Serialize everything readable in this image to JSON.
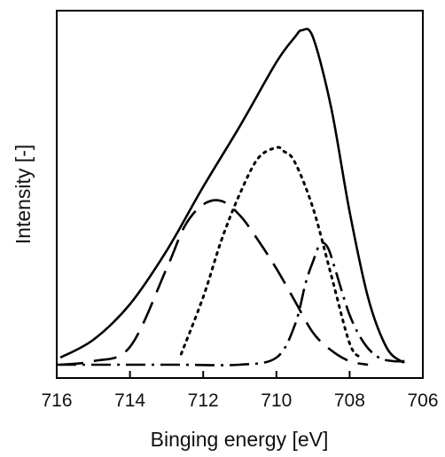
{
  "chart_data": {
    "type": "line",
    "title": "",
    "xlabel": "Binging energy [eV]",
    "ylabel": "Intensity [-]",
    "xlim": [
      716,
      706
    ],
    "x_reversed": true,
    "ylim": [
      0,
      1.0
    ],
    "y_tick_labels": false,
    "x_ticks": [
      "716",
      "714",
      "712",
      "710",
      "708",
      "706"
    ],
    "grid": false,
    "legend": "none",
    "series": [
      {
        "style": "solid",
        "x": [
          715.9,
          715.0,
          714.0,
          713.0,
          712.0,
          711.0,
          710.0,
          709.5,
          709.3,
          709.0,
          708.5,
          708.0,
          707.5,
          707.0,
          706.6,
          706.5
        ],
        "y": [
          0.03,
          0.08,
          0.18,
          0.33,
          0.51,
          0.68,
          0.86,
          0.93,
          0.95,
          0.93,
          0.73,
          0.44,
          0.2,
          0.06,
          0.02,
          0.02
        ]
      },
      {
        "style": "long-dash",
        "x": [
          715.9,
          715.0,
          714.0,
          713.0,
          712.5,
          712.0,
          711.5,
          711.0,
          710.5,
          710.0,
          709.5,
          709.0,
          708.5,
          708.0,
          707.5
        ],
        "y": [
          0.01,
          0.02,
          0.06,
          0.28,
          0.4,
          0.46,
          0.47,
          0.43,
          0.36,
          0.28,
          0.19,
          0.1,
          0.05,
          0.02,
          0.01
        ]
      },
      {
        "style": "dotted",
        "x": [
          712.6,
          712.0,
          711.5,
          711.0,
          710.5,
          710.0,
          709.8,
          709.5,
          709.0,
          708.5,
          708.0,
          707.7
        ],
        "y": [
          0.04,
          0.2,
          0.36,
          0.49,
          0.59,
          0.62,
          0.61,
          0.58,
          0.45,
          0.26,
          0.07,
          0.03
        ]
      },
      {
        "style": "dash-dot",
        "x": [
          716.0,
          714.0,
          712.6,
          711.0,
          710.0,
          709.5,
          709.2,
          709.0,
          708.8,
          708.6,
          708.4,
          708.0,
          707.6,
          707.2,
          706.8,
          706.5
        ],
        "y": [
          0.01,
          0.01,
          0.01,
          0.01,
          0.03,
          0.12,
          0.24,
          0.3,
          0.35,
          0.34,
          0.28,
          0.15,
          0.07,
          0.03,
          0.02,
          0.02
        ]
      }
    ]
  }
}
